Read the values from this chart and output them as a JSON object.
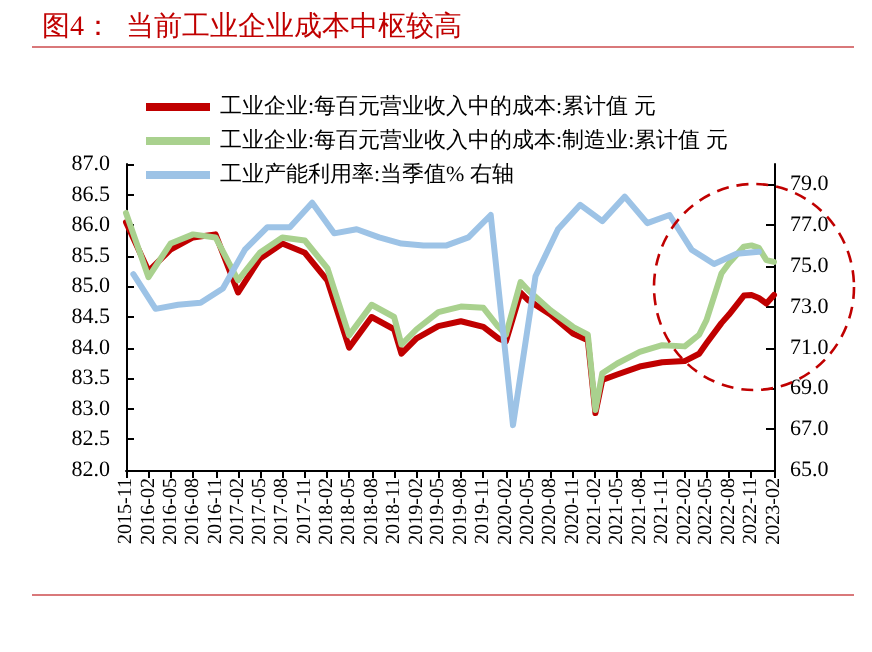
{
  "chart_data": {
    "type": "line",
    "title": "图4：  当前工业企业成本中枢较高",
    "series": [
      {
        "name": "工业企业:每百元营业收入中的成本:累计值 元",
        "color": "#c00000",
        "x": [
          "2015-11",
          "2016-02",
          "2016-05",
          "2016-08",
          "2016-11",
          "2017-02",
          "2017-05",
          "2017-08",
          "2017-11",
          "2018-02",
          "2018-05",
          "2018-08",
          "2018-11",
          "2018-12",
          "2019-02",
          "2019-05",
          "2019-08",
          "2019-11",
          "2020-01",
          "2020-02",
          "2020-04",
          "2020-05",
          "2020-08",
          "2020-11",
          "2021-01",
          "2021-02",
          "2021-03",
          "2021-05",
          "2021-08",
          "2021-11",
          "2022-02",
          "2022-04",
          "2022-05",
          "2022-07",
          "2022-08",
          "2022-10",
          "2022-11",
          "2022-12",
          "2023-01",
          "2023-02"
        ],
        "values": [
          86.05,
          85.25,
          85.6,
          85.8,
          85.85,
          84.9,
          85.45,
          85.7,
          85.55,
          85.1,
          84.0,
          84.5,
          84.3,
          83.9,
          84.15,
          84.35,
          84.43,
          84.34,
          84.15,
          84.1,
          84.9,
          84.78,
          84.54,
          84.23,
          84.12,
          82.93,
          83.47,
          83.56,
          83.69,
          83.76,
          83.78,
          83.9,
          84.07,
          84.4,
          84.54,
          84.85,
          84.86,
          84.81,
          84.72,
          84.86
        ]
      },
      {
        "name": "工业企业:每百元营业收入中的成本:制造业:累计值 元",
        "color": "#a9d18e",
        "x": [
          "2015-11",
          "2016-02",
          "2016-05",
          "2016-08",
          "2016-11",
          "2017-02",
          "2017-05",
          "2017-08",
          "2017-11",
          "2018-02",
          "2018-05",
          "2018-08",
          "2018-11",
          "2018-12",
          "2019-02",
          "2019-05",
          "2019-08",
          "2019-11",
          "2020-01",
          "2020-02",
          "2020-04",
          "2020-05",
          "2020-08",
          "2020-11",
          "2021-01",
          "2021-02",
          "2021-03",
          "2021-05",
          "2021-08",
          "2021-11",
          "2022-02",
          "2022-04",
          "2022-05",
          "2022-07",
          "2022-08",
          "2022-10",
          "2022-11",
          "2022-12",
          "2023-01",
          "2023-02"
        ],
        "values": [
          86.2,
          85.15,
          85.7,
          85.85,
          85.8,
          85.1,
          85.55,
          85.8,
          85.75,
          85.3,
          84.2,
          84.7,
          84.5,
          84.05,
          84.3,
          84.58,
          84.67,
          84.65,
          84.34,
          84.21,
          85.07,
          84.94,
          84.61,
          84.34,
          84.21,
          82.98,
          83.58,
          83.74,
          83.93,
          84.04,
          84.02,
          84.21,
          84.45,
          85.21,
          85.38,
          85.65,
          85.67,
          85.63,
          85.43,
          85.4
        ]
      },
      {
        "name": "工业产能利用率:当季值% 右轴",
        "color": "#9dc3e6",
        "axis": "y2",
        "x": [
          "2015-12",
          "2016-03",
          "2016-06",
          "2016-09",
          "2016-12",
          "2017-03",
          "2017-06",
          "2017-09",
          "2017-12",
          "2018-03",
          "2018-06",
          "2018-09",
          "2018-12",
          "2019-03",
          "2019-06",
          "2019-09",
          "2019-12",
          "2020-03",
          "2020-06",
          "2020-09",
          "2020-12",
          "2021-03",
          "2021-06",
          "2021-09",
          "2021-12",
          "2022-03",
          "2022-06",
          "2022-09",
          "2022-12"
        ],
        "values": [
          74.6,
          72.9,
          73.1,
          73.2,
          73.9,
          75.8,
          76.9,
          76.9,
          78.1,
          76.6,
          76.8,
          76.4,
          76.1,
          76.0,
          76.0,
          76.4,
          77.5,
          67.2,
          74.5,
          76.8,
          78.0,
          77.2,
          78.4,
          77.1,
          77.5,
          75.8,
          75.1,
          75.6,
          75.7
        ]
      }
    ],
    "xlim": [
      "2015-11",
      "2023-02"
    ],
    "xticks": [
      "2015-11",
      "2016-02",
      "2016-05",
      "2016-08",
      "2016-11",
      "2017-02",
      "2017-05",
      "2017-08",
      "2017-11",
      "2018-02",
      "2018-05",
      "2018-08",
      "2018-11",
      "2019-02",
      "2019-05",
      "2019-08",
      "2019-11",
      "2020-02",
      "2020-05",
      "2020-08",
      "2020-11",
      "2021-02",
      "2021-05",
      "2021-08",
      "2021-11",
      "2022-02",
      "2022-05",
      "2022-08",
      "2022-11",
      "2023-02"
    ],
    "ylim": [
      82,
      87
    ],
    "yticks": [
      {
        "value": 82,
        "label": "82.0"
      },
      {
        "value": 82.5,
        "label": "82.5"
      },
      {
        "value": 83,
        "label": "83.0"
      },
      {
        "value": 83.5,
        "label": "83.5"
      },
      {
        "value": 84,
        "label": "84.0"
      },
      {
        "value": 84.5,
        "label": "84.5"
      },
      {
        "value": 85,
        "label": "85.0"
      },
      {
        "value": 85.5,
        "label": "85.5"
      },
      {
        "value": 86,
        "label": "86.0"
      },
      {
        "value": 86.5,
        "label": "86.5"
      },
      {
        "value": 87,
        "label": "87.0"
      }
    ],
    "y2lim": [
      65,
      80
    ],
    "y2ticks": [
      {
        "value": 65,
        "label": "65.0"
      },
      {
        "value": 67,
        "label": "67.0"
      },
      {
        "value": 69,
        "label": "69.0"
      },
      {
        "value": 71,
        "label": "71.0"
      },
      {
        "value": 73,
        "label": "73.0"
      },
      {
        "value": 75,
        "label": "75.0"
      },
      {
        "value": 77,
        "label": "77.0"
      },
      {
        "value": 79,
        "label": "79.0"
      }
    ],
    "grid": false,
    "legend": "top left",
    "marker": "none",
    "line_style": "solid"
  }
}
